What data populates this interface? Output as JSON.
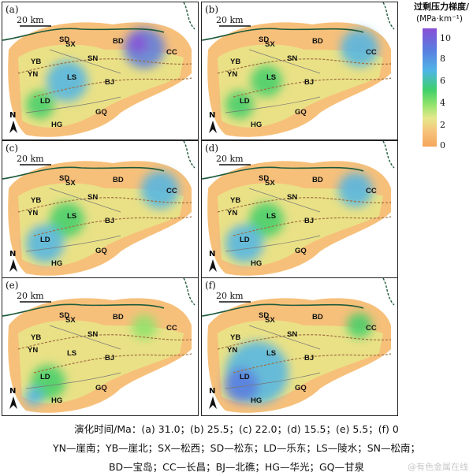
{
  "legend": {
    "title": "过剩压力梯度/",
    "unit": "(MPa·km⁻¹)",
    "ticks": [
      "10",
      "8",
      "6",
      "4",
      "2",
      "0"
    ],
    "colors": [
      "#8a4fd6",
      "#5a7de0",
      "#4fb5e6",
      "#3fcf6a",
      "#e6e88a",
      "#f5a65a"
    ]
  },
  "scale_label": "20 km",
  "north_label": "N",
  "panels": [
    {
      "label": "(a)"
    },
    {
      "label": "(b)"
    },
    {
      "label": "(c)"
    },
    {
      "label": "(d)"
    },
    {
      "label": "(e)"
    },
    {
      "label": "(f)"
    }
  ],
  "sites": [
    "SD",
    "SX",
    "BD",
    "CC",
    "SN",
    "YB",
    "YN",
    "LS",
    "BJ",
    "LD",
    "GQ",
    "HG"
  ],
  "captions": {
    "line1": "演化时间/Ma：(a) 31.0；(b) 25.5；(c) 22.0；(d) 15.5；(e) 5.5；(f) 0",
    "line2": "YN—崖南；YB—崖北；SX—松西；SD—松东；LD—乐东；LS—陵水；SN—松南；",
    "line3": "BD—宝岛；CC—长昌；BJ—北礁；HG—华光；GQ—甘泉"
  },
  "watermark": "@有色金属在线"
}
